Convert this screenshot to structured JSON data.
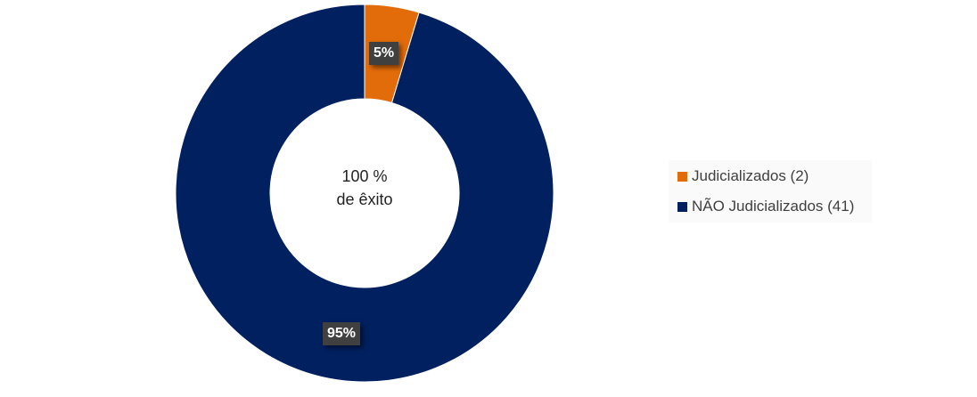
{
  "chart_data": {
    "type": "pie",
    "donut": true,
    "categories": [
      "Judicializados (2)",
      "NÃO Judicializados (41)"
    ],
    "values": [
      2,
      41
    ],
    "data_labels": [
      "5%",
      "95%"
    ],
    "colors": [
      "#E36C0A",
      "#002060"
    ],
    "center_text": [
      "100 %",
      "de êxito"
    ],
    "legend_position": "right"
  }
}
